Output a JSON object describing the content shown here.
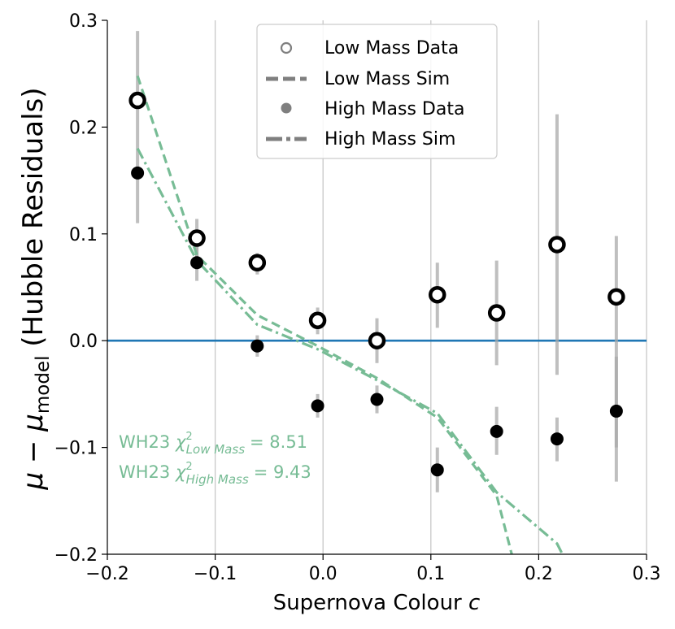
{
  "chart_data": {
    "type": "scatter",
    "title": "",
    "xlabel": "Supernova Colour",
    "xlabel_var": "c",
    "ylabel": {
      "mu": "μ",
      "minus": " − ",
      "mu2": "μ",
      "sub": "model",
      "rest": " (Hubble Residuals)"
    },
    "xlim": [
      -0.2,
      0.3
    ],
    "ylim": [
      -0.2,
      0.3
    ],
    "x_ticks": [
      -0.2,
      -0.1,
      0.0,
      0.1,
      0.2,
      0.3
    ],
    "x_tick_labels": [
      "−0.2",
      "−0.1",
      "0.0",
      "0.1",
      "0.2",
      "0.3"
    ],
    "y_ticks": [
      -0.2,
      -0.1,
      0.0,
      0.1,
      0.2,
      0.3
    ],
    "y_tick_labels": [
      "−0.2",
      "−0.1",
      "0.0",
      "0.1",
      "0.2",
      "0.3"
    ],
    "grid": "vertical",
    "reference_line": {
      "y": 0.0,
      "color": "#1f77b4"
    },
    "series": [
      {
        "name": "Low Mass Data",
        "kind": "points",
        "marker": "open-circle",
        "x": [
          -0.172,
          -0.117,
          -0.061,
          -0.005,
          0.05,
          0.106,
          0.161,
          0.217,
          0.272
        ],
        "y": [
          0.225,
          0.096,
          0.073,
          0.019,
          0.0,
          0.043,
          0.026,
          0.09,
          0.041
        ],
        "yerr_low": [
          null,
          0.076,
          0.062,
          0.006,
          -0.021,
          0.012,
          -0.023,
          -0.032,
          -0.132
        ],
        "yerr_high": [
          null,
          0.114,
          0.082,
          0.031,
          0.021,
          0.073,
          0.075,
          0.212,
          0.098
        ]
      },
      {
        "name": "High Mass Data",
        "kind": "points",
        "marker": "filled-circle",
        "x": [
          -0.172,
          -0.117,
          -0.061,
          -0.005,
          0.05,
          0.106,
          0.161,
          0.217,
          0.272
        ],
        "y": [
          0.157,
          0.073,
          -0.005,
          -0.061,
          -0.055,
          -0.121,
          -0.085,
          -0.092,
          -0.066
        ],
        "yerr_low": [
          0.11,
          0.056,
          -0.015,
          -0.072,
          -0.068,
          -0.142,
          -0.107,
          -0.113,
          -0.1
        ],
        "yerr_high": [
          0.29,
          0.09,
          0.005,
          -0.05,
          -0.042,
          -0.1,
          -0.062,
          -0.072,
          -0.015
        ]
      },
      {
        "name": "Low Mass Sim",
        "kind": "line",
        "dash": "dashed",
        "color": "#77bc95",
        "x": [
          -0.172,
          -0.117,
          -0.061,
          -0.005,
          0.05,
          0.106,
          0.161,
          0.175
        ],
        "y": [
          0.248,
          0.08,
          0.024,
          -0.005,
          -0.035,
          -0.072,
          -0.145,
          -0.2
        ]
      },
      {
        "name": "High Mass Sim",
        "kind": "line",
        "dash": "dashdot",
        "color": "#77bc95",
        "x": [
          -0.172,
          -0.117,
          -0.061,
          -0.005,
          0.05,
          0.106,
          0.161,
          0.217,
          0.222
        ],
        "y": [
          0.18,
          0.075,
          0.015,
          -0.008,
          -0.037,
          -0.068,
          -0.142,
          -0.19,
          -0.2
        ]
      }
    ],
    "legend": {
      "position": "top-center",
      "entries": [
        "Low Mass Data",
        "Low Mass Sim",
        "High Mass Data",
        "High Mass Sim"
      ]
    },
    "annotations": [
      {
        "prefix": "WH23 ",
        "chi": "χ",
        "sup": "2",
        "sub": "Low Mass",
        "value": "= 8.51",
        "color": "#77bc95"
      },
      {
        "prefix": "WH23 ",
        "chi": "χ",
        "sup": "2",
        "sub": "High Mass",
        "value": "= 9.43",
        "color": "#77bc95"
      }
    ]
  }
}
